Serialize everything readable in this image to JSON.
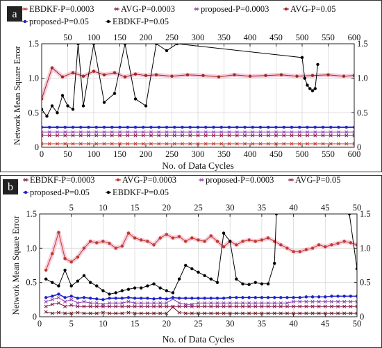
{
  "chart_data": [
    {
      "type": "line",
      "panel_label": "a",
      "xlabel": "No. of Data Cycles",
      "ylabel": "Network Mean Square Error",
      "xlim": [
        0,
        600
      ],
      "ylim": [
        0,
        1.5
      ],
      "xticks": [
        0,
        50,
        100,
        150,
        200,
        250,
        300,
        350,
        400,
        450,
        500,
        550,
        600
      ],
      "xticks_top": [
        50,
        100,
        150,
        200,
        250,
        300,
        350,
        400,
        450,
        500,
        550,
        600
      ],
      "yticks": [
        0,
        0.5,
        1.0,
        1.5
      ],
      "ytick_labels": [
        "0",
        "0.5",
        "1.0",
        "1.5"
      ],
      "grid": true,
      "legend_position": "top",
      "series": [
        {
          "name": "EBDKF-P=0.0003",
          "color": "#c0392b",
          "marker": "x",
          "x": [
            0,
            600
          ],
          "y": [
            0.05,
            0.05
          ]
        },
        {
          "name": "AVG-P=0.0003",
          "color": "#8b1a4a",
          "marker": "x",
          "x": [
            0,
            600
          ],
          "y": [
            0.17,
            0.17
          ]
        },
        {
          "name": "proposed-P=0.0003",
          "color": "#8e44ad",
          "marker": "x",
          "x": [
            0,
            600
          ],
          "y": [
            0.22,
            0.22
          ]
        },
        {
          "name": "AVG-P=0.05",
          "color": "#a0281e",
          "marker": "o",
          "x": [
            0,
            20,
            40,
            60,
            80,
            100,
            120,
            140,
            160,
            180,
            200,
            220,
            250,
            280,
            310,
            340,
            370,
            400,
            430,
            460,
            490,
            520,
            550,
            580,
            600
          ],
          "y": [
            0.7,
            1.15,
            1.02,
            1.08,
            1.03,
            1.1,
            1.05,
            1.08,
            1.02,
            1.06,
            1.04,
            1.05,
            1.03,
            1.05,
            1.04,
            1.02,
            1.05,
            1.03,
            1.04,
            1.05,
            1.03,
            1.04,
            1.05,
            1.03,
            1.04
          ]
        },
        {
          "name": "proposed-P=0.05",
          "color": "#1f22c8",
          "marker": "o",
          "x": [
            0,
            600
          ],
          "y": [
            0.29,
            0.29
          ]
        },
        {
          "name": "EBDKF-P=0.05",
          "color": "#000000",
          "marker": "o",
          "x": [
            0,
            10,
            20,
            30,
            40,
            50,
            60,
            70,
            80,
            100,
            120,
            140,
            160,
            180,
            200,
            220,
            240,
            260,
            500,
            505,
            510,
            515,
            520,
            525,
            530
          ],
          "y": [
            0.55,
            0.45,
            0.6,
            0.5,
            0.75,
            0.6,
            0.55,
            1.5,
            0.6,
            1.5,
            0.65,
            0.78,
            1.5,
            0.7,
            0.6,
            1.5,
            1.4,
            1.5,
            1.3,
            1.0,
            0.9,
            0.85,
            0.82,
            0.85,
            1.2
          ]
        }
      ]
    },
    {
      "type": "line",
      "panel_label": "b",
      "xlabel": "No. of Data Cycles",
      "ylabel": "Network Mean Square Error",
      "xlim": [
        0,
        50
      ],
      "ylim": [
        0,
        1.5
      ],
      "xticks": [
        0,
        5,
        10,
        15,
        20,
        25,
        30,
        35,
        40,
        45,
        50
      ],
      "xticks_top": [
        5,
        10,
        15,
        20,
        25,
        30,
        35,
        40,
        45,
        50
      ],
      "yticks": [
        0,
        0.5,
        1.0,
        1.5
      ],
      "ytick_labels": [
        "0",
        "0.5",
        "1.0",
        "1.5"
      ],
      "grid": true,
      "legend_position": "top",
      "series": [
        {
          "name": "EBDKF-P=0.0003",
          "color": "#6b1f2a",
          "marker": "x",
          "x": [
            1,
            2,
            3,
            4,
            5,
            6,
            7,
            8,
            9,
            10,
            11,
            12,
            13,
            14,
            15,
            16,
            17,
            18,
            19,
            20,
            21,
            22,
            23,
            24,
            25,
            26,
            27,
            28,
            29,
            30,
            31,
            32,
            33,
            34,
            35,
            36,
            37,
            38,
            39,
            40,
            41,
            42,
            43,
            44,
            45,
            46,
            47,
            48,
            49,
            50
          ],
          "y": [
            0.07,
            0.05,
            0.06,
            0.05,
            0.05,
            0.06,
            0.05,
            0.05,
            0.05,
            0.06,
            0.05,
            0.05,
            0.05,
            0.06,
            0.05,
            0.05,
            0.05,
            0.05,
            0.05,
            0.05,
            0.14,
            0.06,
            0.05,
            0.05,
            0.05,
            0.05,
            0.05,
            0.05,
            0.05,
            0.05,
            0.05,
            0.05,
            0.05,
            0.05,
            0.05,
            0.05,
            0.05,
            0.05,
            0.05,
            0.05,
            0.05,
            0.05,
            0.05,
            0.05,
            0.05,
            0.05,
            0.05,
            0.05,
            0.05,
            0.05
          ]
        },
        {
          "name": "AVG-P=0.0003",
          "color": "#c0392b",
          "marker": "o",
          "x": [
            1,
            2,
            3,
            4,
            5,
            6,
            7,
            8,
            9,
            10,
            11,
            12,
            13,
            14,
            15,
            16,
            17,
            18,
            19,
            20,
            21,
            22,
            23,
            24,
            25,
            26,
            27,
            28,
            29,
            30,
            31,
            32,
            33,
            34,
            35,
            36,
            37,
            38,
            39,
            40,
            41,
            42,
            43,
            44,
            45,
            46,
            47,
            48,
            49,
            50
          ],
          "y": [
            0.68,
            0.92,
            1.23,
            0.85,
            0.8,
            0.87,
            1.0,
            1.1,
            1.08,
            1.1,
            1.07,
            1.0,
            1.03,
            1.22,
            1.15,
            1.12,
            1.1,
            1.05,
            1.15,
            1.2,
            1.15,
            1.17,
            1.1,
            1.15,
            1.12,
            1.1,
            1.18,
            1.1,
            1.02,
            1.1,
            1.05,
            1.1,
            1.12,
            1.1,
            1.12,
            1.15,
            1.1,
            1.05,
            1.0,
            0.95,
            0.95,
            0.98,
            1.0,
            1.05,
            1.02,
            1.05,
            1.07,
            1.1,
            1.08,
            1.05
          ]
        },
        {
          "name": "proposed-P=0.0003",
          "color": "#8e44ad",
          "marker": "x",
          "x": [
            1,
            2,
            3,
            4,
            5,
            6,
            7,
            8,
            9,
            10,
            11,
            12,
            13,
            14,
            15,
            16,
            17,
            18,
            19,
            20,
            21,
            22,
            23,
            24,
            25,
            26,
            27,
            28,
            29,
            30,
            31,
            32,
            33,
            34,
            35,
            36,
            37,
            38,
            39,
            40,
            41,
            42,
            43,
            44,
            45,
            46,
            47,
            48,
            49,
            50
          ],
          "y": [
            0.22,
            0.25,
            0.28,
            0.22,
            0.25,
            0.2,
            0.22,
            0.2,
            0.2,
            0.18,
            0.2,
            0.2,
            0.2,
            0.22,
            0.2,
            0.2,
            0.2,
            0.2,
            0.2,
            0.2,
            0.26,
            0.2,
            0.18,
            0.18,
            0.2,
            0.2,
            0.2,
            0.2,
            0.2,
            0.2,
            0.2,
            0.2,
            0.2,
            0.2,
            0.2,
            0.2,
            0.2,
            0.2,
            0.2,
            0.22,
            0.22,
            0.22,
            0.22,
            0.22,
            0.22,
            0.22,
            0.22,
            0.22,
            0.22,
            0.22
          ]
        },
        {
          "name": "AVG-P=0.05",
          "color": "#8b1a4a",
          "marker": "x",
          "x": [
            1,
            2,
            3,
            4,
            5,
            6,
            7,
            8,
            9,
            10,
            11,
            12,
            13,
            14,
            15,
            16,
            17,
            18,
            19,
            20,
            21,
            22,
            23,
            24,
            25,
            26,
            27,
            28,
            29,
            30,
            31,
            32,
            33,
            34,
            35,
            36,
            37,
            38,
            39,
            40,
            41,
            42,
            43,
            44,
            45,
            46,
            47,
            48,
            49,
            50
          ],
          "y": [
            0.15,
            0.18,
            0.2,
            0.15,
            0.17,
            0.15,
            0.15,
            0.15,
            0.15,
            0.15,
            0.15,
            0.15,
            0.15,
            0.15,
            0.15,
            0.15,
            0.15,
            0.15,
            0.15,
            0.15,
            0.15,
            0.15,
            0.15,
            0.15,
            0.15,
            0.15,
            0.15,
            0.15,
            0.15,
            0.15,
            0.15,
            0.15,
            0.15,
            0.15,
            0.15,
            0.15,
            0.15,
            0.15,
            0.15,
            0.15,
            0.15,
            0.15,
            0.15,
            0.15,
            0.15,
            0.15,
            0.15,
            0.15,
            0.15,
            0.15
          ]
        },
        {
          "name": "proposed-P=0.05",
          "color": "#1f22c8",
          "marker": "o",
          "x": [
            1,
            2,
            3,
            4,
            5,
            6,
            7,
            8,
            9,
            10,
            11,
            12,
            13,
            14,
            15,
            16,
            17,
            18,
            19,
            20,
            21,
            22,
            23,
            24,
            25,
            26,
            27,
            28,
            29,
            30,
            31,
            32,
            33,
            34,
            35,
            36,
            37,
            38,
            39,
            40,
            41,
            42,
            43,
            44,
            45,
            46,
            47,
            48,
            49,
            50
          ],
          "y": [
            0.28,
            0.3,
            0.33,
            0.28,
            0.3,
            0.27,
            0.28,
            0.27,
            0.26,
            0.25,
            0.27,
            0.27,
            0.27,
            0.28,
            0.27,
            0.27,
            0.27,
            0.26,
            0.27,
            0.26,
            0.28,
            0.27,
            0.27,
            0.27,
            0.27,
            0.27,
            0.27,
            0.27,
            0.27,
            0.28,
            0.28,
            0.28,
            0.28,
            0.28,
            0.28,
            0.28,
            0.28,
            0.28,
            0.28,
            0.28,
            0.28,
            0.29,
            0.29,
            0.29,
            0.29,
            0.3,
            0.3,
            0.3,
            0.3,
            0.3
          ]
        },
        {
          "name": "EBDKF-P=0.05",
          "color": "#000000",
          "marker": "o",
          "x": [
            1,
            2,
            3,
            4,
            5,
            6,
            7,
            8,
            9,
            10,
            11,
            12,
            13,
            14,
            15,
            16,
            17,
            18,
            19,
            20,
            21,
            22,
            23,
            24,
            25,
            26,
            27,
            28,
            29,
            30,
            31,
            32,
            33,
            34,
            35,
            36,
            37,
            37.3,
            48.8,
            50
          ],
          "y": [
            0.55,
            0.5,
            0.45,
            0.68,
            0.45,
            0.52,
            0.6,
            0.5,
            0.45,
            0.38,
            0.33,
            0.35,
            0.38,
            0.4,
            0.42,
            0.42,
            0.45,
            0.48,
            0.42,
            0.38,
            0.35,
            0.55,
            0.75,
            0.7,
            0.65,
            0.6,
            0.55,
            0.5,
            1.22,
            1.1,
            0.55,
            0.48,
            0.47,
            0.5,
            0.48,
            0.48,
            0.78,
            1.5,
            1.5,
            0.7
          ]
        }
      ]
    }
  ]
}
